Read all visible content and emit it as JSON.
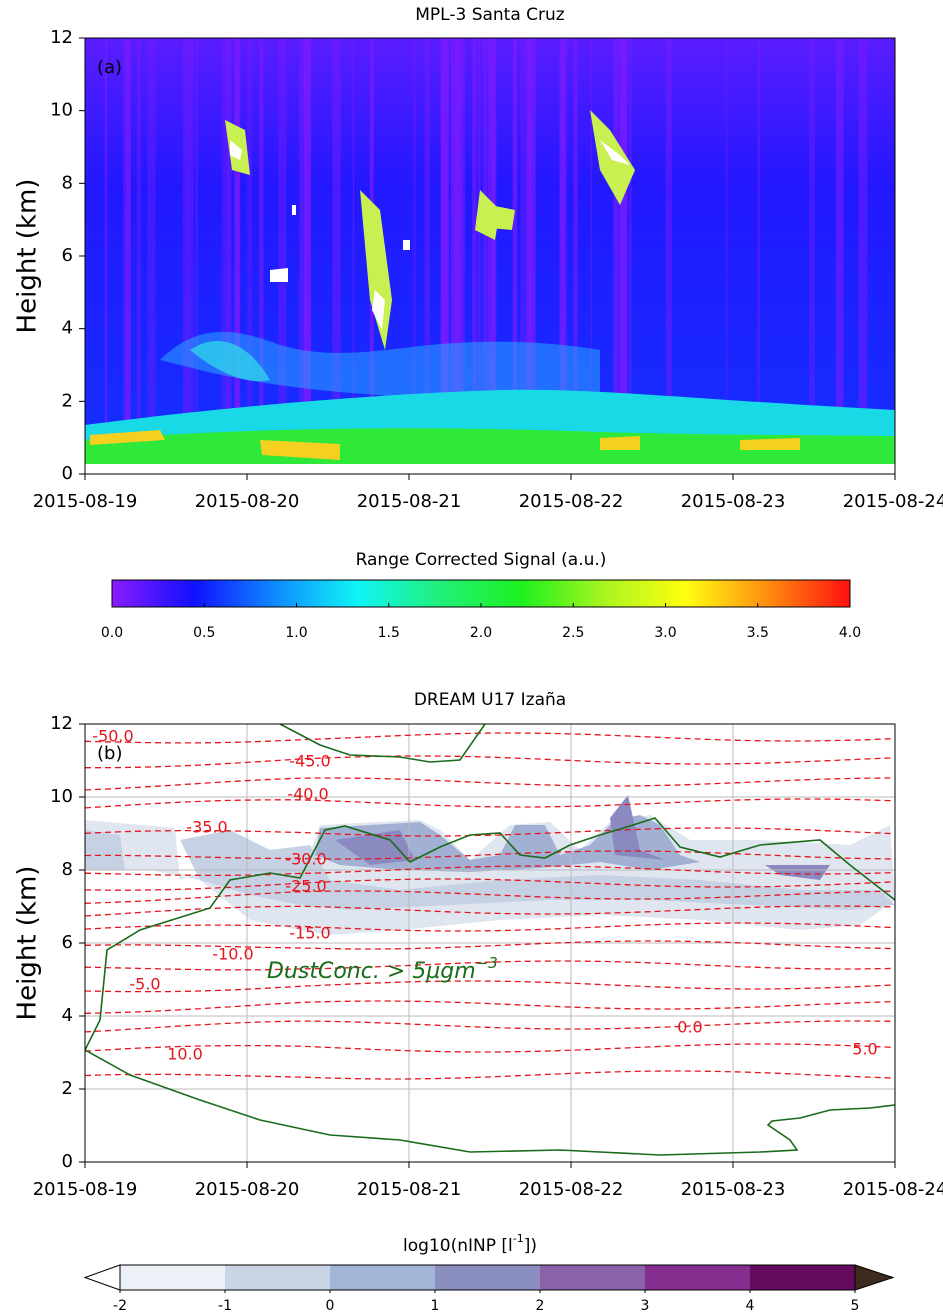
{
  "chart_data": [
    {
      "type": "heatmap",
      "title": "MPL-3 Santa Cruz",
      "panel_label": "(a)",
      "y_label": "Height (km)",
      "xlim": [
        "2015-08-19",
        "2015-08-24"
      ],
      "xticks": [
        "2015-08-19",
        "2015-08-20",
        "2015-08-21",
        "2015-08-22",
        "2015-08-23",
        "2015-08-24"
      ],
      "ylim": [
        0,
        12
      ],
      "yticks": [
        0,
        2,
        4,
        6,
        8,
        10,
        12
      ],
      "colorbar": {
        "label": "Range Corrected Signal (a.u.)",
        "lim": [
          0,
          4
        ],
        "ticks": [
          {
            "value": 0,
            "label": "0.0"
          },
          {
            "value": 0.5,
            "label": "0.5"
          },
          {
            "value": 1,
            "label": "1.0"
          },
          {
            "value": 1.5,
            "label": "1.5"
          },
          {
            "value": 2,
            "label": "2.0"
          },
          {
            "value": 2.5,
            "label": "2.5"
          },
          {
            "value": 3,
            "label": "3.0"
          },
          {
            "value": 3.5,
            "label": "3.5"
          },
          {
            "value": 4,
            "label": "4.0"
          }
        ],
        "colors": [
          "#8a1cff",
          "#1010ff",
          "#0f8cff",
          "#10f5f5",
          "#20f07a",
          "#1ef01e",
          "#a8f51e",
          "#ffff10",
          "#ff8c10",
          "#ff1010"
        ]
      }
    },
    {
      "type": "contour",
      "title": "DREAM U17 Izaña",
      "panel_label": "(b)",
      "y_label": "Height (km)",
      "xlim": [
        "2015-08-19",
        "2015-08-24"
      ],
      "xticks": [
        "2015-08-19",
        "2015-08-20",
        "2015-08-21",
        "2015-08-22",
        "2015-08-23",
        "2015-08-24"
      ],
      "ylim": [
        0,
        12
      ],
      "yticks": [
        0,
        2,
        4,
        6,
        8,
        10,
        12
      ],
      "grid": true,
      "contour_labels": [
        "-50.0",
        "-45.0",
        "-40.0",
        "-35.0",
        "-30.0",
        "-25.0",
        "-15.0",
        "-10.0",
        "-5.0",
        "0.0",
        "5.0",
        "10.0"
      ],
      "annotation": {
        "text": "DustConc. > 5µgm",
        "superscript": "−3"
      },
      "colorbar": {
        "label_before": "log10(nINP [l",
        "label_sup": "-1",
        "label_after": "])",
        "lim": [
          -2,
          5
        ],
        "ticks": [
          -2,
          -1,
          0,
          1,
          2,
          3,
          4,
          5
        ],
        "colors": [
          "#ecf1f7",
          "#c9d5e4",
          "#a2b5d6",
          "#8a8fc0",
          "#8a62a8",
          "#862e8f",
          "#640b5e"
        ],
        "extend_colors": [
          "#ffffff",
          "#3d2b1f"
        ]
      }
    }
  ]
}
